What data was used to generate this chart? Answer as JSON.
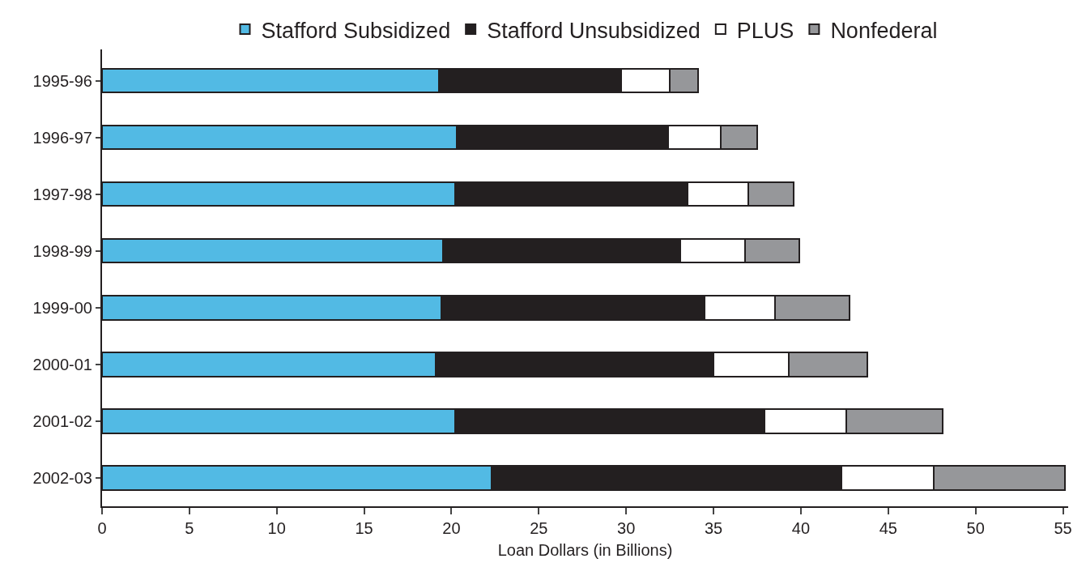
{
  "chart_data": {
    "type": "bar",
    "orientation": "horizontal",
    "stacked": true,
    "xlabel": "Loan Dollars (in Billions)",
    "categories": [
      "1995-96",
      "1996-97",
      "1997-98",
      "1998-99",
      "1999-00",
      "2000-01",
      "2001-02",
      "2002-03"
    ],
    "series": [
      {
        "name": "Stafford Subsidized",
        "color": "#52bae4",
        "values": [
          19.3,
          20.3,
          20.2,
          19.5,
          19.4,
          19.1,
          20.2,
          22.3
        ]
      },
      {
        "name": "Stafford Unsubsidized",
        "color": "#231f20",
        "values": [
          10.4,
          12.1,
          13.3,
          13.6,
          15.1,
          15.9,
          17.7,
          20.0
        ]
      },
      {
        "name": "PLUS",
        "color": "#ffffff",
        "values": [
          2.8,
          3.0,
          3.5,
          3.7,
          4.0,
          4.3,
          4.7,
          5.3
        ]
      },
      {
        "name": "Nonfederal",
        "color": "#96979a",
        "values": [
          1.6,
          2.1,
          2.6,
          3.1,
          4.3,
          4.5,
          5.5,
          7.5
        ]
      }
    ],
    "xlim": [
      0,
      55.3
    ],
    "xticks": [
      0,
      5,
      10,
      15,
      20,
      25,
      30,
      35,
      40,
      45,
      50,
      55
    ],
    "grid": false,
    "legend": "top"
  }
}
